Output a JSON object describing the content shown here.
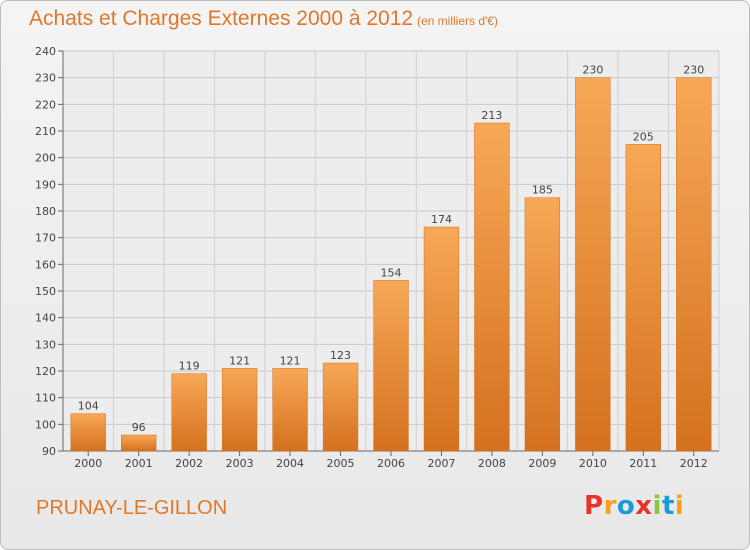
{
  "header": {
    "title": "Achats et Charges Externes 2000 à 2012",
    "unit": "(en milliers d'€)"
  },
  "footer": {
    "commune": "PRUNAY-LE-GILLON",
    "logo_text": "Proxiti",
    "logo_colors": [
      "#e8332a",
      "#f7a11a",
      "#1a9ad6",
      "#e8332a",
      "#8cc63f",
      "#1a9ad6",
      "#f7a11a"
    ]
  },
  "chart_data": {
    "type": "bar",
    "categories": [
      "2000",
      "2001",
      "2002",
      "2003",
      "2004",
      "2005",
      "2006",
      "2007",
      "2008",
      "2009",
      "2010",
      "2011",
      "2012"
    ],
    "values": [
      104,
      96,
      119,
      121,
      121,
      123,
      154,
      174,
      213,
      185,
      230,
      205,
      230
    ],
    "ylim": [
      90,
      240
    ],
    "yticks": [
      90,
      100,
      110,
      120,
      130,
      140,
      150,
      160,
      170,
      180,
      190,
      200,
      210,
      220,
      230,
      240
    ],
    "grid": true,
    "bar_color": "#f08a30",
    "bar_color_light": "#f7a857",
    "bar_color_dark": "#d4711e"
  }
}
